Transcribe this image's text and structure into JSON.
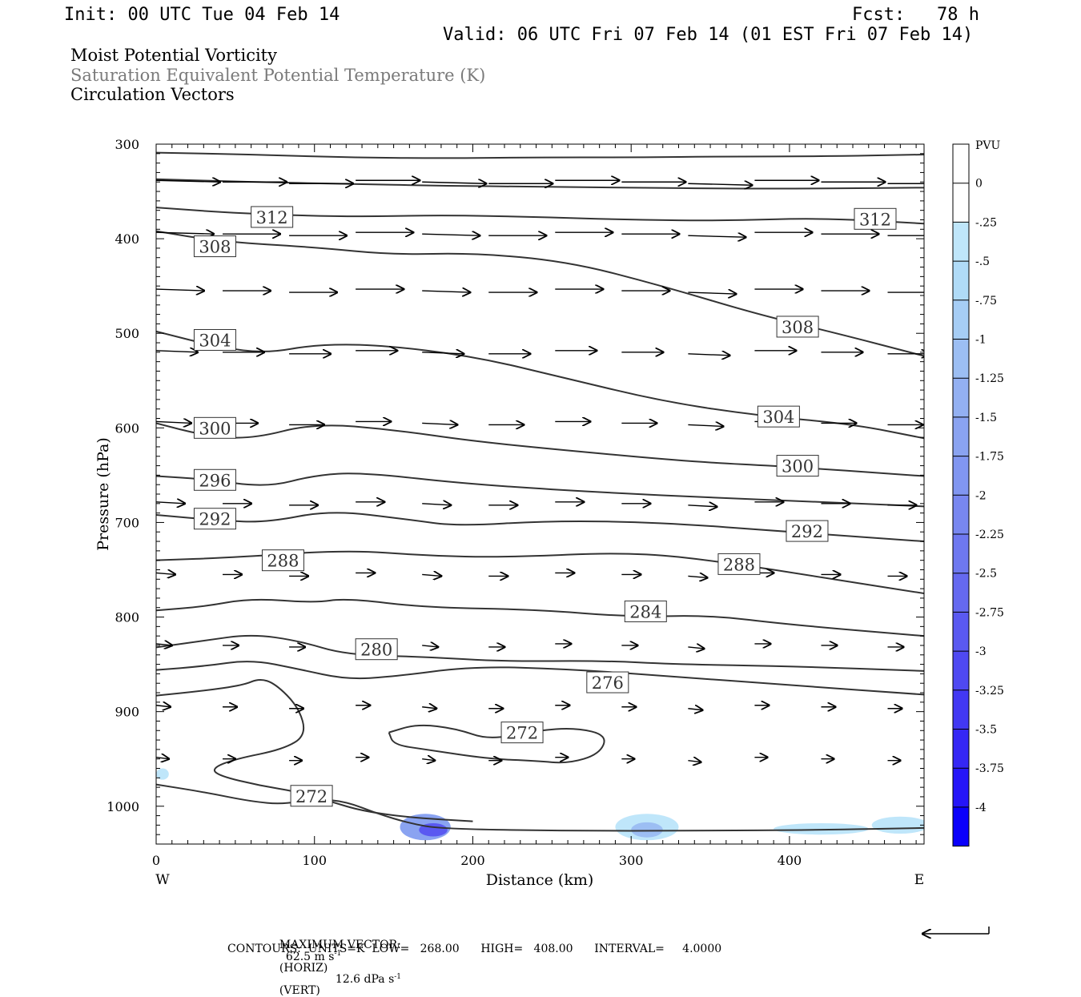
{
  "header": {
    "init": "Init: 00 UTC Tue 04 Feb 14",
    "fcst": "Fcst:   78 h",
    "valid": "Valid: 06 UTC Fri 07 Feb 14 (01 EST Fri 07 Feb 14)"
  },
  "fields": {
    "field1": "Moist Potential Vorticity",
    "field2": "Saturation Equivalent Potential Temperature (K)",
    "field3": "Circulation Vectors"
  },
  "footer": {
    "max_vector_label": "MAXIMUM VECTOR:",
    "max_horiz": "62.5 m s",
    "horiz_tag": "(HORIZ)",
    "max_vert": "12.6 dPa s",
    "vert_tag": "(VERT)",
    "exponent": "-1",
    "contours": "CONTOURS:  UNITS=K  LOW=   268.00      HIGH=   408.00      INTERVAL=     4.0000"
  },
  "chart_data": {
    "type": "cross-section",
    "xlabel": "Distance (km)",
    "ylabel": "Pressure (hPa)",
    "xlim": [
      0,
      485
    ],
    "ylim": [
      1040,
      300
    ],
    "x_ticks": [
      0,
      100,
      200,
      300,
      400
    ],
    "y_ticks": [
      300,
      400,
      500,
      600,
      700,
      800,
      900,
      1000
    ],
    "x_end_labels": {
      "left": "W",
      "right": "E"
    },
    "colorbar": {
      "unit": "PVU",
      "ticks": [
        "0",
        "-.25",
        "-.5",
        "-.75",
        "-1",
        "-1.25",
        "-1.5",
        "-1.75",
        "-2",
        "-2.25",
        "-2.5",
        "-2.75",
        "-3",
        "-3.25",
        "-3.5",
        "-3.75",
        "-4"
      ],
      "colors": [
        "#ffffff",
        "#ffffff",
        "#bfe6fa",
        "#b0dbf7",
        "#a6cdf5",
        "#9cbef3",
        "#93b0f2",
        "#8aa3f1",
        "#8196f1",
        "#7887f0",
        "#6e78f0",
        "#6569f0",
        "#5a59f1",
        "#4f49f2",
        "#4238f3",
        "#3527f5",
        "#2515f8",
        "#0a00fb"
      ]
    },
    "contour_labels": [
      {
        "text": "312",
        "x": 60,
        "p": 377
      },
      {
        "text": "312",
        "x": 441,
        "p": 379
      },
      {
        "text": "308",
        "x": 24,
        "p": 408
      },
      {
        "text": "308",
        "x": 392,
        "p": 493
      },
      {
        "text": "304",
        "x": 24,
        "p": 507
      },
      {
        "text": "304",
        "x": 380,
        "p": 588
      },
      {
        "text": "300",
        "x": 24,
        "p": 600
      },
      {
        "text": "300",
        "x": 392,
        "p": 640
      },
      {
        "text": "296",
        "x": 24,
        "p": 655
      },
      {
        "text": "292",
        "x": 24,
        "p": 696
      },
      {
        "text": "292",
        "x": 398,
        "p": 709
      },
      {
        "text": "288",
        "x": 67,
        "p": 740
      },
      {
        "text": "288",
        "x": 355,
        "p": 744
      },
      {
        "text": "284",
        "x": 296,
        "p": 794
      },
      {
        "text": "280",
        "x": 126,
        "p": 834
      },
      {
        "text": "276",
        "x": 272,
        "p": 869
      },
      {
        "text": "272",
        "x": 218,
        "p": 922
      },
      {
        "text": "272",
        "x": 85,
        "p": 989
      }
    ],
    "contours": [
      [
        [
          0,
          309
        ],
        [
          60,
          311
        ],
        [
          120,
          314
        ],
        [
          180,
          315
        ],
        [
          240,
          314
        ],
        [
          300,
          314
        ],
        [
          360,
          313
        ],
        [
          420,
          313
        ],
        [
          485,
          311
        ]
      ],
      [
        [
          0,
          337
        ],
        [
          60,
          340
        ],
        [
          120,
          342
        ],
        [
          180,
          344
        ],
        [
          240,
          345
        ],
        [
          300,
          346
        ],
        [
          360,
          347
        ],
        [
          420,
          347
        ],
        [
          485,
          346
        ]
      ],
      [
        [
          0,
          367
        ],
        [
          50,
          373
        ],
        [
          120,
          377
        ],
        [
          180,
          375
        ],
        [
          240,
          377
        ],
        [
          300,
          380
        ],
        [
          360,
          381
        ],
        [
          420,
          378
        ],
        [
          485,
          384
        ]
      ],
      [
        [
          0,
          392
        ],
        [
          40,
          403
        ],
        [
          100,
          409
        ],
        [
          150,
          417
        ],
        [
          200,
          415
        ],
        [
          260,
          424
        ],
        [
          320,
          450
        ],
        [
          380,
          480
        ],
        [
          430,
          500
        ],
        [
          485,
          524
        ]
      ],
      [
        [
          0,
          498
        ],
        [
          40,
          515
        ],
        [
          70,
          521
        ],
        [
          100,
          512
        ],
        [
          140,
          512
        ],
        [
          200,
          524
        ],
        [
          260,
          548
        ],
        [
          320,
          572
        ],
        [
          380,
          587
        ],
        [
          440,
          596
        ],
        [
          485,
          611
        ]
      ],
      [
        [
          0,
          595
        ],
        [
          30,
          608
        ],
        [
          60,
          612
        ],
        [
          100,
          595
        ],
        [
          150,
          602
        ],
        [
          200,
          614
        ],
        [
          260,
          624
        ],
        [
          340,
          636
        ],
        [
          400,
          641
        ],
        [
          485,
          651
        ]
      ],
      [
        [
          0,
          651
        ],
        [
          30,
          654
        ],
        [
          70,
          663
        ],
        [
          100,
          650
        ],
        [
          130,
          647
        ],
        [
          200,
          660
        ],
        [
          300,
          670
        ],
        [
          400,
          677
        ],
        [
          485,
          683
        ]
      ],
      [
        [
          0,
          692
        ],
        [
          40,
          698
        ],
        [
          70,
          700
        ],
        [
          110,
          687
        ],
        [
          160,
          697
        ],
        [
          190,
          704
        ],
        [
          250,
          698
        ],
        [
          320,
          700
        ],
        [
          400,
          710
        ],
        [
          485,
          720
        ]
      ],
      [
        [
          0,
          740
        ],
        [
          50,
          737
        ],
        [
          120,
          729
        ],
        [
          170,
          735
        ],
        [
          220,
          737
        ],
        [
          300,
          731
        ],
        [
          360,
          742
        ],
        [
          420,
          758
        ],
        [
          485,
          775
        ]
      ],
      [
        [
          0,
          793
        ],
        [
          30,
          789
        ],
        [
          60,
          780
        ],
        [
          100,
          785
        ],
        [
          120,
          780
        ],
        [
          170,
          790
        ],
        [
          240,
          792
        ],
        [
          300,
          800
        ],
        [
          350,
          798
        ],
        [
          400,
          808
        ],
        [
          485,
          820
        ]
      ],
      [
        [
          0,
          832
        ],
        [
          30,
          825
        ],
        [
          60,
          818
        ],
        [
          90,
          825
        ],
        [
          120,
          840
        ],
        [
          170,
          842
        ],
        [
          220,
          847
        ],
        [
          280,
          846
        ],
        [
          330,
          850
        ],
        [
          400,
          852
        ],
        [
          485,
          857
        ]
      ],
      [
        [
          0,
          856
        ],
        [
          30,
          852
        ],
        [
          60,
          845
        ],
        [
          90,
          855
        ],
        [
          120,
          866
        ],
        [
          150,
          863
        ],
        [
          200,
          852
        ],
        [
          260,
          855
        ],
        [
          320,
          862
        ],
        [
          400,
          872
        ],
        [
          485,
          882
        ]
      ],
      [
        [
          0,
          883
        ],
        [
          30,
          878
        ],
        [
          55,
          872
        ],
        [
          65,
          865
        ],
        [
          75,
          870
        ],
        [
          90,
          895
        ],
        [
          95,
          925
        ],
        [
          80,
          940
        ],
        [
          50,
          950
        ],
        [
          35,
          960
        ],
        [
          40,
          968
        ],
        [
          65,
          978
        ],
        [
          90,
          985
        ],
        [
          110,
          995
        ],
        [
          130,
          1005
        ],
        [
          160,
          1012
        ],
        [
          200,
          1016
        ]
      ],
      [
        [
          0,
          977
        ],
        [
          30,
          985
        ],
        [
          60,
          995
        ],
        [
          80,
          998
        ],
        [
          100,
          992
        ],
        [
          120,
          995
        ],
        [
          140,
          1008
        ],
        [
          160,
          1018
        ],
        [
          180,
          1024
        ],
        [
          260,
          1026
        ],
        [
          340,
          1026
        ],
        [
          420,
          1025
        ],
        [
          485,
          1023
        ]
      ],
      [
        [
          147,
          922
        ],
        [
          165,
          913
        ],
        [
          190,
          918
        ],
        [
          210,
          930
        ],
        [
          240,
          920
        ],
        [
          265,
          917
        ],
        [
          285,
          925
        ],
        [
          280,
          945
        ],
        [
          260,
          955
        ],
        [
          240,
          952
        ],
        [
          210,
          950
        ],
        [
          170,
          940
        ],
        [
          150,
          935
        ],
        [
          147,
          922
        ]
      ]
    ],
    "vector_rows": [
      {
        "p": 340,
        "x_start": 0,
        "x_step": 42,
        "count": 12,
        "len": 40
      },
      {
        "p": 395,
        "x_start": 0,
        "x_step": 42,
        "count": 12,
        "len": 36
      },
      {
        "p": 455,
        "x_start": 0,
        "x_step": 42,
        "count": 12,
        "len": 30
      },
      {
        "p": 520,
        "x_start": 0,
        "x_step": 42,
        "count": 12,
        "len": 26
      },
      {
        "p": 595,
        "x_start": 0,
        "x_step": 42,
        "count": 12,
        "len": 22
      },
      {
        "p": 680,
        "x_start": 0,
        "x_step": 42,
        "count": 12,
        "len": 18
      },
      {
        "p": 755,
        "x_start": 0,
        "x_step": 42,
        "count": 12,
        "len": 12
      },
      {
        "p": 830,
        "x_start": 0,
        "x_step": 42,
        "count": 12,
        "len": 10
      },
      {
        "p": 895,
        "x_start": 0,
        "x_step": 42,
        "count": 12,
        "len": 9
      },
      {
        "p": 950,
        "x_start": 0,
        "x_step": 42,
        "count": 12,
        "len": 8
      }
    ],
    "pv_patches": [
      {
        "x": 170,
        "p": 1022,
        "rx": 16,
        "rp": 14,
        "color": "#8aa3f1"
      },
      {
        "x": 175,
        "p": 1025,
        "rx": 9,
        "rp": 7,
        "color": "#5a59f1"
      },
      {
        "x": 310,
        "p": 1022,
        "rx": 20,
        "rp": 14,
        "color": "#bfe6fa"
      },
      {
        "x": 310,
        "p": 1025,
        "rx": 10,
        "rp": 8,
        "color": "#9cbef3"
      },
      {
        "x": 420,
        "p": 1024,
        "rx": 30,
        "rp": 6,
        "color": "#bfe6fa"
      },
      {
        "x": 470,
        "p": 1020,
        "rx": 18,
        "rp": 9,
        "color": "#bfe6fa"
      },
      {
        "x": 4,
        "p": 966,
        "rx": 4,
        "rp": 6,
        "color": "#bfe6fa"
      }
    ]
  }
}
